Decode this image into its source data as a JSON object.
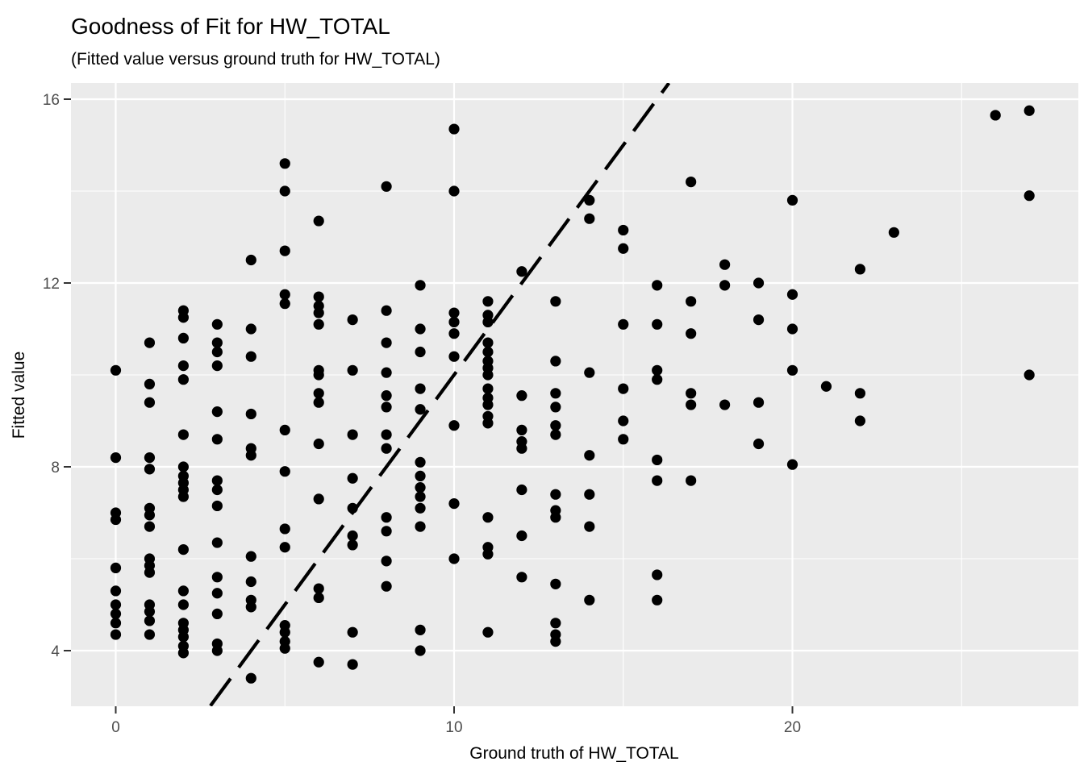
{
  "chart_data": {
    "type": "scatter",
    "title": "Goodness of Fit for HW_TOTAL",
    "subtitle": "(Fitted value versus ground truth for HW_TOTAL)",
    "xlabel": "Ground truth of HW_TOTAL",
    "ylabel": "Fitted value",
    "xlim": [
      -1.3,
      28.4
    ],
    "ylim": [
      2.8,
      16.35
    ],
    "x_major_ticks": [
      0,
      10,
      20
    ],
    "x_minor_ticks": [
      5,
      15,
      25
    ],
    "y_major_ticks": [
      4,
      8,
      12,
      16
    ],
    "y_minor_ticks": [
      6,
      10,
      14
    ],
    "grid": true,
    "legend": "none",
    "styles": {
      "panel_background": "#EBEBEB",
      "grid_color": "#FFFFFF",
      "point_color": "#000000",
      "reference_line_color": "#000000",
      "tick_label_color": "#4D4D4D",
      "tick_mark_color": "#333333"
    },
    "reference_line": {
      "label": "y = x",
      "slope": 1,
      "intercept": 0,
      "style": "dashed"
    },
    "points": [
      [
        0,
        10.1
      ],
      [
        0,
        8.2
      ],
      [
        0,
        7.0
      ],
      [
        0,
        6.85
      ],
      [
        0,
        5.8
      ],
      [
        0,
        5.3
      ],
      [
        0,
        5.0
      ],
      [
        0,
        4.8
      ],
      [
        0,
        4.6
      ],
      [
        0,
        4.35
      ],
      [
        1,
        10.7
      ],
      [
        1,
        9.8
      ],
      [
        1,
        9.4
      ],
      [
        1,
        8.2
      ],
      [
        1,
        7.95
      ],
      [
        1,
        7.1
      ],
      [
        1,
        6.95
      ],
      [
        1,
        6.7
      ],
      [
        1,
        6.0
      ],
      [
        1,
        5.85
      ],
      [
        1,
        5.7
      ],
      [
        1,
        5.0
      ],
      [
        1,
        4.85
      ],
      [
        1,
        4.65
      ],
      [
        1,
        4.35
      ],
      [
        2,
        11.4
      ],
      [
        2,
        11.25
      ],
      [
        2,
        10.8
      ],
      [
        2,
        10.2
      ],
      [
        2,
        9.9
      ],
      [
        2,
        8.7
      ],
      [
        2,
        8.0
      ],
      [
        2,
        7.8
      ],
      [
        2,
        7.65
      ],
      [
        2,
        7.5
      ],
      [
        2,
        7.35
      ],
      [
        2,
        6.2
      ],
      [
        2,
        5.3
      ],
      [
        2,
        5.0
      ],
      [
        2,
        4.6
      ],
      [
        2,
        4.45
      ],
      [
        2,
        4.3
      ],
      [
        2,
        4.1
      ],
      [
        2,
        3.95
      ],
      [
        3,
        11.1
      ],
      [
        3,
        10.7
      ],
      [
        3,
        10.5
      ],
      [
        3,
        10.2
      ],
      [
        3,
        9.2
      ],
      [
        3,
        8.6
      ],
      [
        3,
        7.7
      ],
      [
        3,
        7.5
      ],
      [
        3,
        7.15
      ],
      [
        3,
        6.35
      ],
      [
        3,
        5.6
      ],
      [
        3,
        5.25
      ],
      [
        3,
        4.8
      ],
      [
        3,
        4.15
      ],
      [
        3,
        4.0
      ],
      [
        4,
        12.5
      ],
      [
        4,
        11.0
      ],
      [
        4,
        10.4
      ],
      [
        4,
        9.15
      ],
      [
        4,
        8.4
      ],
      [
        4,
        8.25
      ],
      [
        4,
        6.05
      ],
      [
        4,
        5.5
      ],
      [
        4,
        5.1
      ],
      [
        4,
        4.95
      ],
      [
        4,
        3.4
      ],
      [
        5,
        14.6
      ],
      [
        5,
        14.0
      ],
      [
        5,
        12.7
      ],
      [
        5,
        11.75
      ],
      [
        5,
        11.55
      ],
      [
        5,
        8.8
      ],
      [
        5,
        7.9
      ],
      [
        5,
        6.65
      ],
      [
        5,
        6.25
      ],
      [
        5,
        4.55
      ],
      [
        5,
        4.4
      ],
      [
        5,
        4.2
      ],
      [
        5,
        4.05
      ],
      [
        6,
        13.35
      ],
      [
        6,
        11.7
      ],
      [
        6,
        11.5
      ],
      [
        6,
        11.35
      ],
      [
        6,
        11.1
      ],
      [
        6,
        10.1
      ],
      [
        6,
        10.0
      ],
      [
        6,
        9.6
      ],
      [
        6,
        9.4
      ],
      [
        6,
        8.5
      ],
      [
        6,
        7.3
      ],
      [
        6,
        5.35
      ],
      [
        6,
        5.15
      ],
      [
        6,
        3.75
      ],
      [
        7,
        11.2
      ],
      [
        7,
        10.1
      ],
      [
        7,
        8.7
      ],
      [
        7,
        7.75
      ],
      [
        7,
        7.1
      ],
      [
        7,
        6.5
      ],
      [
        7,
        6.3
      ],
      [
        7,
        4.4
      ],
      [
        7,
        3.7
      ],
      [
        8,
        14.1
      ],
      [
        8,
        11.4
      ],
      [
        8,
        10.7
      ],
      [
        8,
        10.05
      ],
      [
        8,
        9.55
      ],
      [
        8,
        9.3
      ],
      [
        8,
        8.7
      ],
      [
        8,
        8.4
      ],
      [
        8,
        6.9
      ],
      [
        8,
        6.6
      ],
      [
        8,
        5.95
      ],
      [
        8,
        5.4
      ],
      [
        9,
        11.95
      ],
      [
        9,
        11.0
      ],
      [
        9,
        10.5
      ],
      [
        9,
        9.7
      ],
      [
        9,
        9.25
      ],
      [
        9,
        8.1
      ],
      [
        9,
        7.8
      ],
      [
        9,
        7.55
      ],
      [
        9,
        7.35
      ],
      [
        9,
        7.1
      ],
      [
        9,
        6.7
      ],
      [
        9,
        4.45
      ],
      [
        9,
        4.0
      ],
      [
        10,
        15.35
      ],
      [
        10,
        14.0
      ],
      [
        10,
        11.35
      ],
      [
        10,
        11.15
      ],
      [
        10,
        10.9
      ],
      [
        10,
        10.4
      ],
      [
        10,
        8.9
      ],
      [
        10,
        7.2
      ],
      [
        10,
        6.0
      ],
      [
        11,
        11.6
      ],
      [
        11,
        11.3
      ],
      [
        11,
        11.15
      ],
      [
        11,
        10.7
      ],
      [
        11,
        10.5
      ],
      [
        11,
        10.3
      ],
      [
        11,
        10.15
      ],
      [
        11,
        10.0
      ],
      [
        11,
        9.7
      ],
      [
        11,
        9.5
      ],
      [
        11,
        9.35
      ],
      [
        11,
        9.1
      ],
      [
        11,
        8.95
      ],
      [
        11,
        6.9
      ],
      [
        11,
        6.25
      ],
      [
        11,
        6.1
      ],
      [
        11,
        4.4
      ],
      [
        12,
        12.25
      ],
      [
        12,
        9.55
      ],
      [
        12,
        8.8
      ],
      [
        12,
        8.55
      ],
      [
        12,
        8.4
      ],
      [
        12,
        7.5
      ],
      [
        12,
        6.5
      ],
      [
        12,
        5.6
      ],
      [
        13,
        11.6
      ],
      [
        13,
        10.3
      ],
      [
        13,
        9.6
      ],
      [
        13,
        9.3
      ],
      [
        13,
        8.9
      ],
      [
        13,
        8.7
      ],
      [
        13,
        7.4
      ],
      [
        13,
        7.05
      ],
      [
        13,
        6.9
      ],
      [
        13,
        5.45
      ],
      [
        13,
        4.6
      ],
      [
        13,
        4.35
      ],
      [
        13,
        4.2
      ],
      [
        14,
        13.8
      ],
      [
        14,
        13.4
      ],
      [
        14,
        10.05
      ],
      [
        14,
        8.25
      ],
      [
        14,
        7.4
      ],
      [
        14,
        6.7
      ],
      [
        14,
        5.1
      ],
      [
        15,
        13.15
      ],
      [
        15,
        12.75
      ],
      [
        15,
        11.1
      ],
      [
        15,
        9.7
      ],
      [
        15,
        9.0
      ],
      [
        15,
        8.6
      ],
      [
        16,
        11.95
      ],
      [
        16,
        11.1
      ],
      [
        16,
        10.1
      ],
      [
        16,
        9.9
      ],
      [
        16,
        8.15
      ],
      [
        16,
        7.7
      ],
      [
        16,
        5.65
      ],
      [
        16,
        5.1
      ],
      [
        17,
        14.2
      ],
      [
        17,
        11.6
      ],
      [
        17,
        10.9
      ],
      [
        17,
        9.6
      ],
      [
        17,
        9.35
      ],
      [
        17,
        7.7
      ],
      [
        18,
        12.4
      ],
      [
        18,
        11.95
      ],
      [
        18,
        9.35
      ],
      [
        19,
        12.0
      ],
      [
        19,
        11.2
      ],
      [
        19,
        9.4
      ],
      [
        19,
        8.5
      ],
      [
        20,
        13.8
      ],
      [
        20,
        11.75
      ],
      [
        20,
        11.0
      ],
      [
        20,
        10.1
      ],
      [
        20,
        8.05
      ],
      [
        21,
        9.75
      ],
      [
        22,
        12.3
      ],
      [
        22,
        9.6
      ],
      [
        22,
        9.0
      ],
      [
        23,
        13.1
      ],
      [
        26,
        15.65
      ],
      [
        27,
        15.75
      ],
      [
        27,
        13.9
      ],
      [
        27,
        10.0
      ]
    ]
  }
}
